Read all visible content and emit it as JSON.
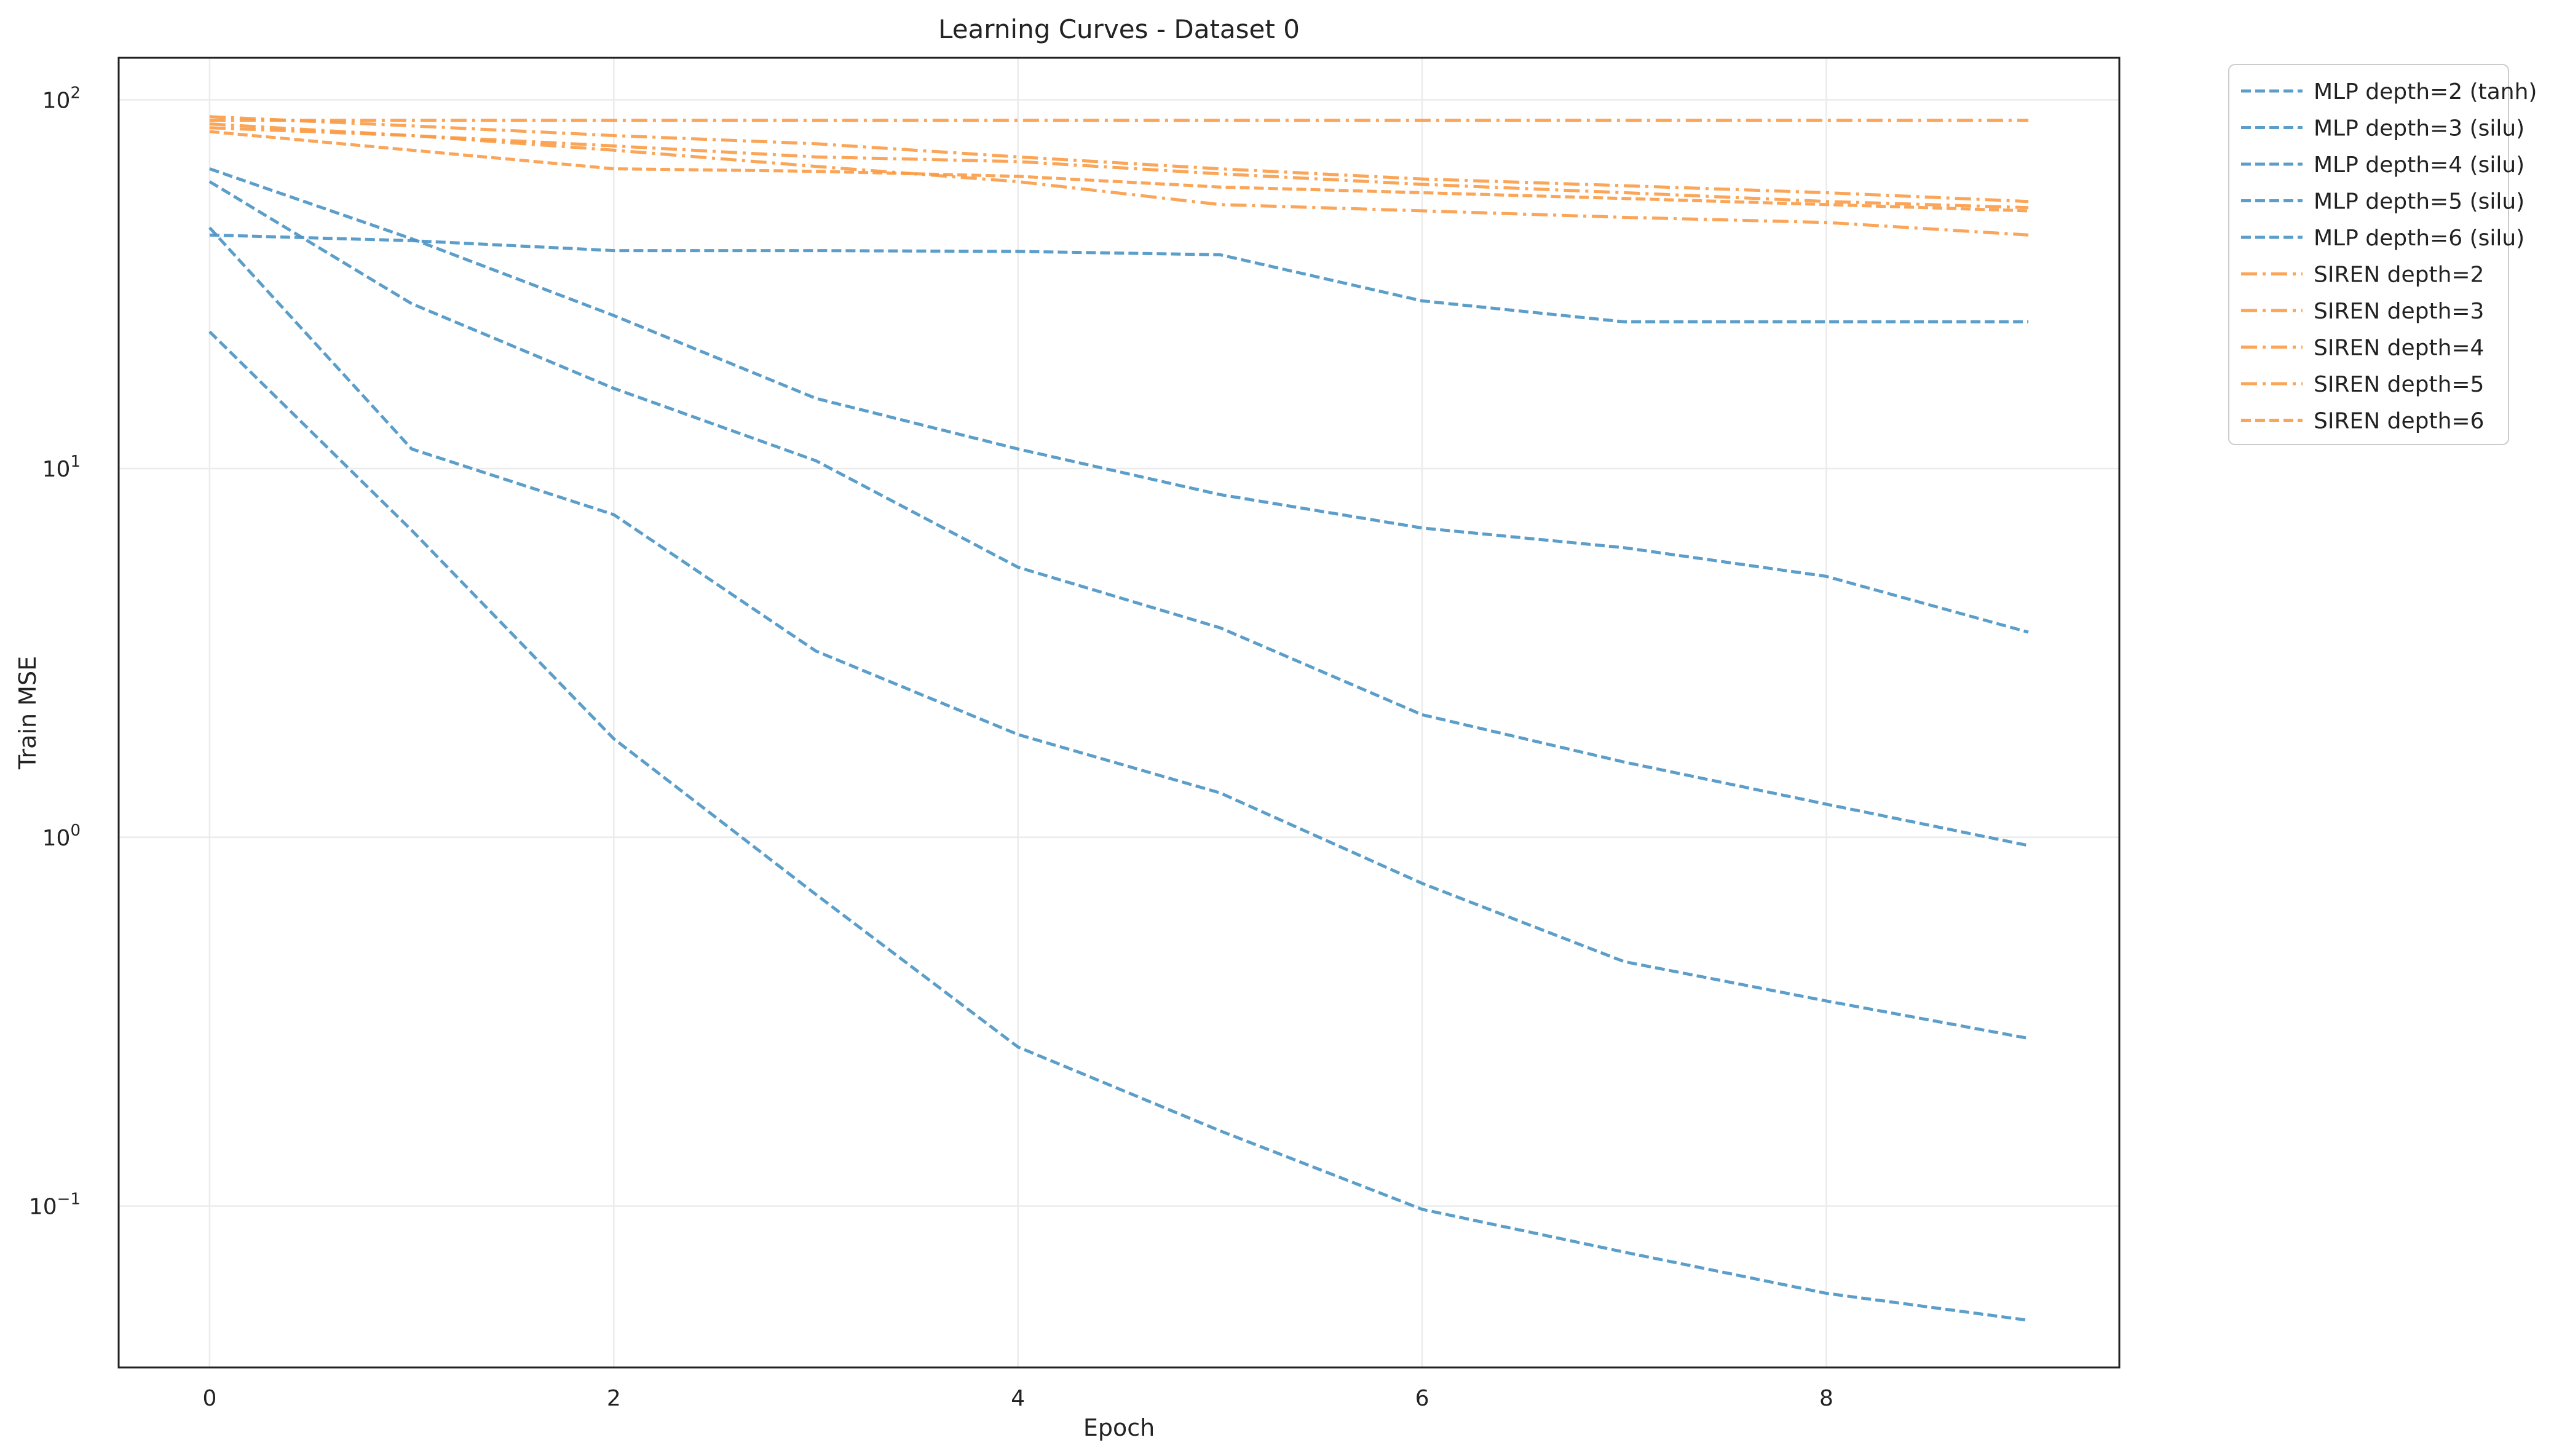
{
  "chart_data": {
    "type": "line",
    "title": "Learning Curves - Dataset 0",
    "xlabel": "Epoch",
    "ylabel": "Train MSE",
    "xscale": "linear",
    "yscale": "log",
    "xlim": [
      -0.45,
      9.45
    ],
    "ylim": [
      0.0365,
      130
    ],
    "grid": true,
    "legend_position": "outside-upper-right",
    "x_ticks": [
      {
        "value": 0,
        "label": "0"
      },
      {
        "value": 2,
        "label": "2"
      },
      {
        "value": 4,
        "label": "4"
      },
      {
        "value": 6,
        "label": "6"
      },
      {
        "value": 8,
        "label": "8"
      }
    ],
    "y_ticks": [
      {
        "value": 0.1,
        "base": "10",
        "exp": "−1"
      },
      {
        "value": 1,
        "base": "10",
        "exp": "0"
      },
      {
        "value": 10,
        "base": "10",
        "exp": "1"
      },
      {
        "value": 100,
        "base": "10",
        "exp": "2"
      }
    ],
    "x": [
      0,
      1,
      2,
      3,
      4,
      5,
      6,
      7,
      8,
      9
    ],
    "series": [
      {
        "name": "MLP depth=2 (tanh)",
        "style": "dashed",
        "color": "#4a94c4",
        "values": [
          43,
          41.5,
          39,
          39,
          38.8,
          38,
          28.5,
          25,
          25,
          25
        ]
      },
      {
        "name": "MLP depth=3 (silu)",
        "style": "dashed",
        "color": "#4a94c4",
        "values": [
          65,
          42,
          26,
          15.5,
          11.3,
          8.5,
          6.9,
          6.1,
          5.1,
          3.6
        ]
      },
      {
        "name": "MLP depth=4 (silu)",
        "style": "dashed",
        "color": "#4a94c4",
        "values": [
          60,
          28,
          16.5,
          10.5,
          5.4,
          3.7,
          2.15,
          1.6,
          1.23,
          0.95
        ]
      },
      {
        "name": "MLP depth=5 (silu)",
        "style": "dashed",
        "color": "#4a94c4",
        "values": [
          45,
          11.3,
          7.5,
          3.2,
          1.9,
          1.32,
          0.75,
          0.46,
          0.36,
          0.285
        ]
      },
      {
        "name": "MLP depth=6 (silu)",
        "style": "dashed",
        "color": "#4a94c4",
        "values": [
          23.5,
          6.8,
          1.85,
          0.7,
          0.27,
          0.16,
          0.098,
          0.075,
          0.058,
          0.049
        ]
      },
      {
        "name": "SIREN depth=2",
        "style": "dashdot",
        "color": "#f99b45",
        "values": [
          88,
          88,
          88,
          88,
          88,
          88,
          88,
          88,
          88,
          88
        ]
      },
      {
        "name": "SIREN depth=3",
        "style": "dashdot",
        "color": "#f99b45",
        "values": [
          86,
          80,
          73,
          66,
          60,
          52,
          50,
          48,
          46.5,
          43
        ]
      },
      {
        "name": "SIREN depth=4",
        "style": "dashdot",
        "color": "#f99b45",
        "values": [
          84,
          80,
          75,
          70,
          68,
          63,
          59,
          56,
          53,
          51
        ]
      },
      {
        "name": "SIREN depth=5",
        "style": "dashdot",
        "color": "#f99b45",
        "values": [
          90,
          85,
          80,
          76,
          70,
          65,
          61,
          58.5,
          56,
          53
        ]
      },
      {
        "name": "SIREN depth=6",
        "style": "dashed",
        "color": "#f99b45",
        "values": [
          82,
          73,
          65,
          64,
          62,
          58,
          56,
          54,
          52,
          50
        ]
      }
    ]
  }
}
